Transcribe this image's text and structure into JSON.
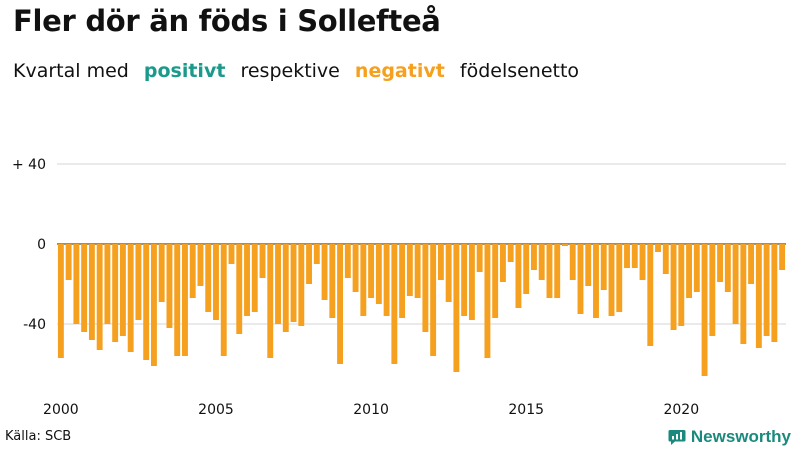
{
  "header": {
    "title": "Fler dör än föds i Sollefteå",
    "subtitle_prefix": "Kvartal med",
    "positive_word": "positivt",
    "subtitle_middle": "respektive",
    "negative_word": "negativt",
    "subtitle_suffix": "födelsenetto"
  },
  "footer": {
    "source": "Källa: SCB",
    "brand": "Newsworthy"
  },
  "colors": {
    "positive": "#1a9a8a",
    "negative": "#f5a01e",
    "brand": "#1a8a7c"
  },
  "chart_data": {
    "type": "bar",
    "title": "",
    "xlabel": "",
    "ylabel": "",
    "ylim": [
      -70,
      47
    ],
    "y_ticks": [
      {
        "value": 40,
        "label": "+ 40"
      },
      {
        "value": 0,
        "label": "0"
      },
      {
        "value": -40,
        "label": "-40"
      }
    ],
    "x_ticks": [
      "2000",
      "2005",
      "2010",
      "2015",
      "2020"
    ],
    "grid": true,
    "series": [
      {
        "values": [
          -57,
          -18,
          -40,
          -44,
          -48,
          -53,
          -40,
          -49,
          -46,
          -54,
          -38,
          -58,
          -61,
          -29,
          -42,
          -56,
          -56,
          -27,
          -21,
          -34,
          -38,
          -56,
          -10,
          -45,
          -36,
          -34,
          -17,
          -57,
          -40,
          -44,
          -39,
          -41,
          -20,
          -10,
          -28,
          -37,
          -60,
          -17,
          -24,
          -36,
          -27,
          -30,
          -36,
          -60,
          -37,
          -26,
          -27,
          -44,
          -56,
          -18,
          -29,
          -64,
          -36,
          -38,
          -14,
          -57,
          -37,
          -19,
          -9,
          -32,
          -25,
          -13,
          -18,
          -27,
          -27,
          -1,
          -18,
          -35,
          -21,
          -37,
          -23,
          -36,
          -34,
          -12,
          -12,
          -18,
          -51,
          -4,
          -15,
          -43,
          -41,
          -27,
          -24,
          -66,
          -46,
          -19,
          -24,
          -40,
          -50,
          -20,
          -52,
          -46,
          -49,
          -13
        ]
      }
    ]
  }
}
